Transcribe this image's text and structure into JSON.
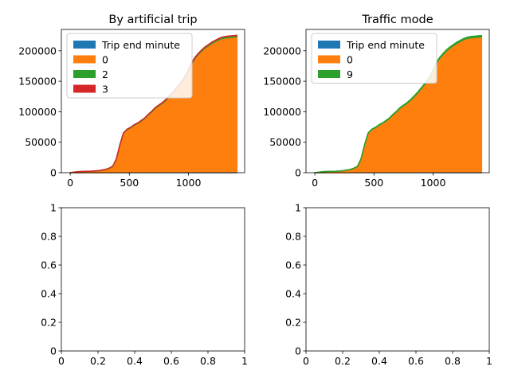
{
  "chart_data": [
    {
      "type": "area",
      "title": "By artificial trip",
      "xlabel": "",
      "ylabel": "",
      "xlim": [
        -75,
        1475
      ],
      "ylim": [
        0,
        235000
      ],
      "xticks": [
        0,
        500,
        1000
      ],
      "yticks": [
        0,
        50000,
        100000,
        150000,
        200000
      ],
      "grid": false,
      "legend_position": "upper left",
      "x": [
        0,
        60,
        120,
        180,
        240,
        300,
        330,
        360,
        390,
        420,
        450,
        480,
        510,
        540,
        570,
        600,
        630,
        660,
        690,
        720,
        750,
        780,
        810,
        840,
        870,
        900,
        930,
        960,
        990,
        1020,
        1050,
        1080,
        1110,
        1140,
        1170,
        1200,
        1230,
        1260,
        1290,
        1320,
        1350,
        1380,
        1410
      ],
      "series": [
        {
          "name": "Trip end minute",
          "color": "#1f77b4",
          "values": [
            0,
            20,
            40,
            60,
            80,
            100,
            120,
            150,
            200,
            300,
            450,
            550,
            600,
            650,
            700,
            720,
            750,
            780,
            800,
            830,
            860,
            890,
            910,
            940,
            970,
            1000,
            1030,
            1060,
            1090,
            1120,
            1150,
            1180,
            1200,
            1220,
            1240,
            1260,
            1280,
            1300,
            1310,
            1320,
            1330,
            1335,
            1340
          ]
        },
        {
          "name": "0",
          "color": "#ff7f0e",
          "values": [
            0,
            1500,
            2000,
            2200,
            3000,
            5000,
            7000,
            10000,
            22000,
            45000,
            64000,
            70000,
            73000,
            77000,
            80000,
            84000,
            88000,
            94000,
            99000,
            105000,
            109000,
            113000,
            118000,
            124000,
            130000,
            137000,
            144000,
            152000,
            162000,
            175000,
            185000,
            192000,
            198000,
            203000,
            207000,
            211000,
            214000,
            217000,
            219000,
            220000,
            220500,
            221000,
            221500
          ]
        },
        {
          "name": "2",
          "color": "#2ca02c",
          "values": [
            0,
            150,
            200,
            250,
            300,
            350,
            400,
            450,
            500,
            550,
            600,
            650,
            700,
            750,
            800,
            850,
            900,
            950,
            1000,
            1050,
            1100,
            1150,
            1200,
            1250,
            1300,
            1350,
            1400,
            1450,
            1500,
            1550,
            1600,
            1650,
            1700,
            1750,
            1800,
            1850,
            1900,
            1950,
            2000,
            2050,
            2100,
            2150,
            2200
          ]
        },
        {
          "name": "3",
          "color": "#d62728",
          "values": [
            0,
            10,
            20,
            30,
            40,
            50,
            60,
            70,
            80,
            90,
            100,
            110,
            120,
            130,
            140,
            150,
            160,
            170,
            180,
            190,
            200,
            210,
            220,
            230,
            240,
            250,
            260,
            270,
            280,
            290,
            300,
            310,
            320,
            330,
            340,
            350,
            360,
            370,
            380,
            390,
            400,
            410,
            420
          ]
        }
      ]
    },
    {
      "type": "area",
      "title": "Traffic mode",
      "xlabel": "",
      "ylabel": "",
      "xlim": [
        -75,
        1475
      ],
      "ylim": [
        0,
        235000
      ],
      "xticks": [
        0,
        500,
        1000
      ],
      "yticks": [
        0,
        50000,
        100000,
        150000,
        200000
      ],
      "grid": false,
      "legend_position": "upper left",
      "x": [
        0,
        60,
        120,
        180,
        240,
        300,
        330,
        360,
        390,
        420,
        450,
        480,
        510,
        540,
        570,
        600,
        630,
        660,
        690,
        720,
        750,
        780,
        810,
        840,
        870,
        900,
        930,
        960,
        990,
        1020,
        1050,
        1080,
        1110,
        1140,
        1170,
        1200,
        1230,
        1260,
        1290,
        1320,
        1350,
        1380,
        1410
      ],
      "series": [
        {
          "name": "Trip end minute",
          "color": "#1f77b4",
          "values": [
            0,
            20,
            40,
            60,
            80,
            100,
            120,
            150,
            200,
            300,
            450,
            550,
            600,
            650,
            700,
            720,
            750,
            780,
            800,
            830,
            860,
            890,
            910,
            940,
            970,
            1000,
            1030,
            1060,
            1090,
            1120,
            1150,
            1180,
            1200,
            1220,
            1240,
            1260,
            1280,
            1300,
            1310,
            1320,
            1330,
            1335,
            1340
          ]
        },
        {
          "name": "0",
          "color": "#ff7f0e",
          "values": [
            0,
            1500,
            2000,
            2200,
            3000,
            5000,
            7000,
            10000,
            22000,
            45000,
            64000,
            70000,
            73000,
            77000,
            80000,
            84000,
            88000,
            94000,
            99000,
            105000,
            109000,
            113000,
            118000,
            124000,
            130000,
            137000,
            144000,
            152000,
            162000,
            175000,
            185000,
            192000,
            198000,
            203000,
            207000,
            211000,
            214000,
            217000,
            219000,
            220000,
            220500,
            221000,
            221500
          ]
        },
        {
          "name": "9",
          "color": "#2ca02c",
          "values": [
            0,
            160,
            210,
            260,
            310,
            360,
            410,
            460,
            510,
            560,
            610,
            660,
            710,
            760,
            810,
            860,
            910,
            960,
            1010,
            1060,
            1110,
            1160,
            1210,
            1260,
            1310,
            1360,
            1410,
            1460,
            1510,
            1560,
            1610,
            1660,
            1710,
            1760,
            1810,
            1860,
            1910,
            1960,
            2010,
            2060,
            2110,
            2160,
            2200
          ]
        }
      ]
    },
    {
      "type": "line",
      "title": "",
      "xlabel": "",
      "ylabel": "",
      "xlim": [
        0,
        1
      ],
      "ylim": [
        0,
        1
      ],
      "xticks": [
        0,
        0.2,
        0.4,
        0.6,
        0.8,
        1
      ],
      "yticks": [
        0,
        0.2,
        0.4,
        0.6,
        0.8,
        1
      ],
      "grid": false,
      "series": []
    },
    {
      "type": "line",
      "title": "",
      "xlabel": "",
      "ylabel": "",
      "xlim": [
        0,
        1
      ],
      "ylim": [
        0,
        1
      ],
      "xticks": [
        0,
        0.2,
        0.4,
        0.6,
        0.8,
        1
      ],
      "yticks": [
        0,
        0.2,
        0.4,
        0.6,
        0.8,
        1
      ],
      "grid": false,
      "series": []
    }
  ]
}
